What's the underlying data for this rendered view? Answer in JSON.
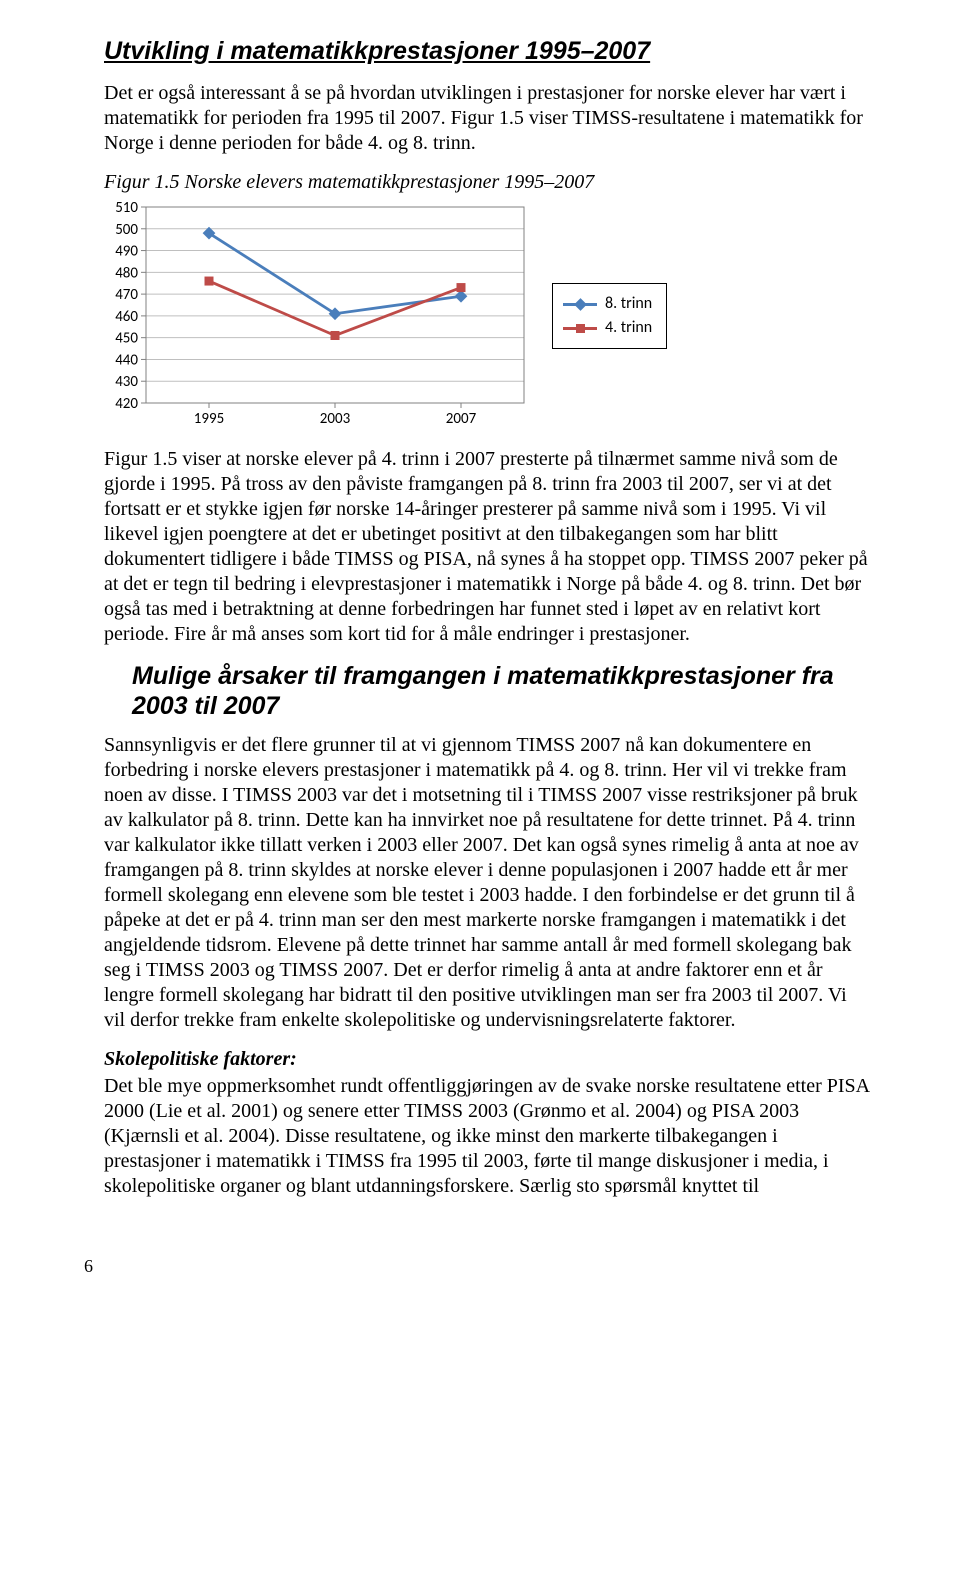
{
  "title_1": "Utvikling i matematikkprestasjoner 1995–2007",
  "para_1": "Det er også interessant å se på hvordan utviklingen i prestasjoner for norske elever har vært i matematikk for perioden fra 1995 til 2007. Figur 1.5 viser TIMSS-resultatene i matematikk for Norge i denne perioden for både 4. og 8. trinn.",
  "fig_caption": "Figur 1.5 Norske elevers matematikkprestasjoner 1995–2007",
  "chart": {
    "type": "line",
    "x_categories": [
      "1995",
      "2003",
      "2007"
    ],
    "y_ticks": [
      420,
      430,
      440,
      450,
      460,
      470,
      480,
      490,
      500,
      510
    ],
    "ylim": [
      420,
      510
    ],
    "series": [
      {
        "name": "8. trinn",
        "color": "#4a7ebb",
        "marker": "diamond",
        "values": [
          498,
          461,
          469
        ]
      },
      {
        "name": "4. trinn",
        "color": "#be4b48",
        "marker": "square",
        "values": [
          476,
          451,
          473
        ]
      }
    ],
    "grid_color": "#bfbfbf",
    "axis_color": "#808080",
    "background_color": "#ffffff",
    "font_family": "Calibri",
    "tick_fontsize": 15,
    "line_width": 2.8,
    "marker_size": 9
  },
  "legend": {
    "items": [
      {
        "label": "8. trinn"
      },
      {
        "label": "4. trinn"
      }
    ]
  },
  "para_2": "Figur 1.5 viser at norske elever på 4. trinn i 2007 presterte på tilnærmet samme nivå som de gjorde i 1995. På tross av den påviste framgangen på 8. trinn fra 2003 til 2007, ser vi at det fortsatt er et stykke igjen før norske 14-åringer presterer på samme nivå som i 1995. Vi vil likevel igjen poengtere at det er ubetinget positivt at den tilbakegangen som har blitt dokumentert tidligere i både TIMSS og PISA, nå synes å ha stoppet opp. TIMSS 2007 peker på at det er tegn til bedring i elevprestasjoner i matematikk i Norge på både 4. og 8. trinn. Det bør også tas med i betraktning at denne forbedringen har funnet sted i løpet av en relativt kort periode. Fire år må anses som kort tid for å måle endringer i prestasjoner.",
  "title_2": "Mulige årsaker til framgangen i matematikkprestasjoner fra 2003 til 2007",
  "para_3": "Sannsynligvis er det flere grunner til at vi gjennom TIMSS 2007 nå kan dokumentere en forbedring i norske elevers prestasjoner i matematikk på 4. og 8. trinn. Her vil vi trekke fram noen av disse. I TIMSS 2003 var det i motsetning til i TIMSS 2007 visse restriksjoner på bruk av kalkulator på 8. trinn. Dette kan ha innvirket noe på resultatene for dette trinnet. På 4. trinn var kalkulator ikke tillatt verken i 2003 eller 2007. Det kan også synes rimelig å anta at noe av framgangen på 8. trinn skyldes at norske elever i denne populasjonen i 2007 hadde ett år mer formell skolegang enn elevene som ble testet i 2003 hadde. I den forbindelse er det grunn til å påpeke at det er på 4. trinn man ser den mest markerte norske framgangen i matematikk i det angjeldende tidsrom. Elevene på dette trinnet har samme antall år med formell skolegang bak seg i TIMSS 2003 og TIMSS 2007. Det er derfor rimelig å anta at andre faktorer enn et år lengre formell skolegang har bidratt til den positive utviklingen man ser fra 2003 til 2007. Vi vil derfor trekke fram enkelte skolepolitiske og undervisningsrelaterte faktorer.",
  "subhead": "Skolepolitiske faktorer:",
  "para_4": "Det ble mye oppmerksomhet rundt offentliggjøringen av de svake norske resultatene etter PISA 2000 (Lie et al. 2001) og senere etter TIMSS 2003 (Grønmo et al. 2004) og PISA 2003 (Kjærnsli et al. 2004). Disse resultatene, og ikke minst den markerte tilbakegangen i prestasjoner i matematikk i TIMSS fra 1995 til 2003, førte til mange diskusjoner i media, i skolepolitiske organer og blant utdanningsforskere. Særlig sto spørsmål knyttet til",
  "page_number": "6"
}
